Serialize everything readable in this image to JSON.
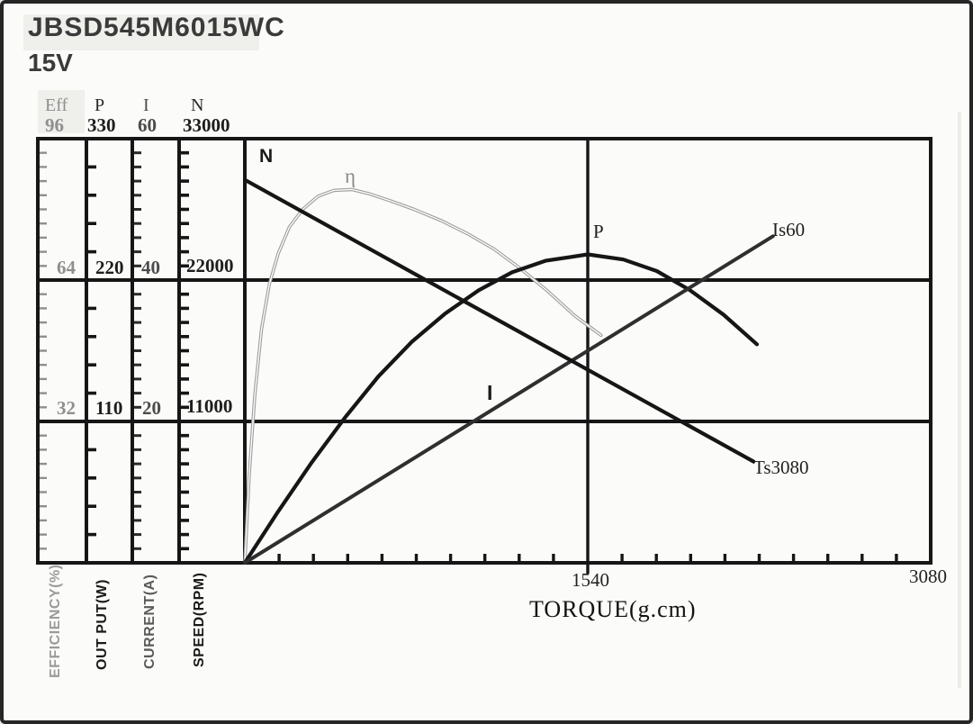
{
  "header": {
    "title": "JBSD545M6015WC",
    "voltage": "15V"
  },
  "scale_columns": [
    {
      "name": "Eff",
      "values": [
        "96",
        "64",
        "32"
      ],
      "axis_label": "EFFICIENCY(%)"
    },
    {
      "name": "P",
      "values": [
        "330",
        "220",
        "110"
      ],
      "axis_label": "OUT PUT(W)"
    },
    {
      "name": "I",
      "values": [
        "60",
        "40",
        "20"
      ],
      "axis_label": "CURRENT(A)"
    },
    {
      "name": "N",
      "values": [
        "33000",
        "22000",
        "11000"
      ],
      "axis_label": "SPEED(RPM)"
    }
  ],
  "x_axis": {
    "label": "TORQUE(g.cm)",
    "mid_tick": "1540",
    "max_tick": "3080"
  },
  "curve_labels": {
    "speed": "N",
    "efficiency": "η",
    "power": "P",
    "current": "I",
    "stall_current": "Is60",
    "stall_torque": "Ts3080"
  },
  "colors": {
    "ink": "#161616",
    "current_line": "#2f2f2f",
    "efficiency_line": "#9f9f9f",
    "efficiency_core": "#ffffff"
  },
  "chart_data": {
    "type": "line",
    "title": "JBSD545M6015WC 15V DC motor performance curves",
    "xlabel": "TORQUE(g.cm)",
    "x_range": [
      0,
      3080
    ],
    "x_ticks_labeled": [
      1540,
      3080
    ],
    "x_minor_divisions": 20,
    "grid_rows": 3,
    "y_axes": [
      {
        "label": "EFFICIENCY(%)",
        "max": 96,
        "ticks": [
          32,
          64,
          96
        ],
        "minor_per_range": 30
      },
      {
        "label": "OUT PUT(W)",
        "max": 330,
        "ticks": [
          110,
          220,
          330
        ],
        "minor_per_range": 15
      },
      {
        "label": "CURRENT(A)",
        "max": 60,
        "ticks": [
          20,
          40,
          60
        ],
        "minor_per_range": 30
      },
      {
        "label": "SPEED(RPM)",
        "max": 33000,
        "ticks": [
          11000,
          22000,
          33000
        ],
        "minor_per_range": 30
      }
    ],
    "series": [
      {
        "name": "η",
        "axis": "EFFICIENCY(%)",
        "axis_max": 96,
        "style": "double-gray",
        "width": 3.6,
        "points": [
          [
            0,
            0
          ],
          [
            20,
            20
          ],
          [
            45,
            38
          ],
          [
            75,
            53
          ],
          [
            110,
            63
          ],
          [
            150,
            70
          ],
          [
            200,
            76
          ],
          [
            260,
            80
          ],
          [
            330,
            83
          ],
          [
            400,
            84.3
          ],
          [
            480,
            84.5
          ],
          [
            560,
            83.5
          ],
          [
            650,
            82
          ],
          [
            760,
            80
          ],
          [
            880,
            77.5
          ],
          [
            1000,
            74.5
          ],
          [
            1120,
            71
          ],
          [
            1240,
            66.5
          ],
          [
            1360,
            61.5
          ],
          [
            1480,
            56
          ],
          [
            1560,
            53
          ],
          [
            1600,
            51.5
          ]
        ]
      },
      {
        "name": "P",
        "axis": "OUT PUT(W)",
        "axis_max": 330,
        "style": "solid",
        "width": 4.2,
        "points": [
          [
            0,
            0
          ],
          [
            150,
            40
          ],
          [
            300,
            78
          ],
          [
            450,
            113
          ],
          [
            600,
            145
          ],
          [
            750,
            172
          ],
          [
            900,
            194
          ],
          [
            1050,
            212
          ],
          [
            1200,
            226
          ],
          [
            1350,
            235
          ],
          [
            1540,
            240
          ],
          [
            1700,
            236
          ],
          [
            1850,
            227
          ],
          [
            2000,
            212
          ],
          [
            2150,
            193
          ],
          [
            2300,
            170
          ]
        ]
      },
      {
        "name": "I",
        "axis": "CURRENT(A)",
        "axis_max": 60,
        "style": "solid-dim",
        "width": 4,
        "points": [
          [
            0,
            0
          ],
          [
            2372,
            46.2
          ]
        ]
      },
      {
        "name": "N",
        "axis": "SPEED(RPM)",
        "axis_max": 33000,
        "style": "solid",
        "width": 4.2,
        "points": [
          [
            0,
            29800
          ],
          [
            2284,
            7880
          ]
        ]
      }
    ],
    "annotations": [
      {
        "text": "Is60",
        "meaning": "stall current marker at end of I line"
      },
      {
        "text": "Ts3080",
        "meaning": "stall torque marker at end of N line"
      }
    ]
  }
}
